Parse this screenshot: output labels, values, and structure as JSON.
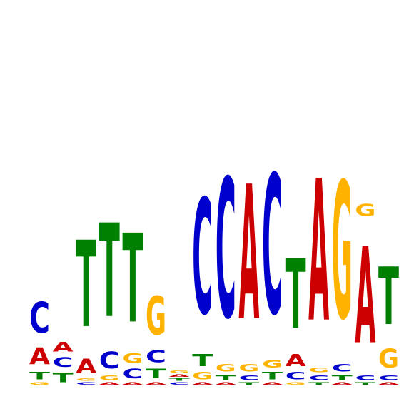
{
  "logo": {
    "type": "sequence-logo",
    "colors": {
      "A": "#cc0000",
      "C": "#0000cc",
      "G": "#ffb300",
      "T": "#008000"
    },
    "positions": [
      [
        [
          "G",
          0.01
        ],
        [
          "T",
          0.03
        ],
        [
          "A",
          0.07
        ],
        [
          "C",
          0.13
        ]
      ],
      [
        [
          "T",
          0.04
        ],
        [
          "C",
          0.04
        ],
        [
          "A",
          0.04
        ]
      ],
      [
        [
          "C",
          0.01
        ],
        [
          "G",
          0.01
        ],
        [
          "A",
          0.06
        ],
        [
          "T",
          0.36
        ]
      ],
      [
        [
          "A",
          0.01
        ],
        [
          "G",
          0.02
        ],
        [
          "C",
          0.07
        ],
        [
          "T",
          0.39
        ]
      ],
      [
        [
          "A",
          0.01
        ],
        [
          "C",
          0.04
        ],
        [
          "G",
          0.04
        ],
        [
          "T",
          0.37
        ]
      ],
      [
        [
          "A",
          0.01
        ],
        [
          "T",
          0.04
        ],
        [
          "C",
          0.05
        ],
        [
          "G",
          0.16
        ]
      ],
      [
        [
          "C",
          0.01
        ],
        [
          "T",
          0.01
        ],
        [
          "A",
          0.01
        ],
        [
          "G",
          0.01
        ]
      ],
      [
        [
          "A",
          0.01
        ],
        [
          "G",
          0.03
        ],
        [
          "T",
          0.05
        ],
        [
          "C",
          0.48
        ]
      ],
      [
        [
          "A",
          0.01
        ],
        [
          "T",
          0.02
        ],
        [
          "G",
          0.03
        ],
        [
          "C",
          0.58
        ]
      ],
      [
        [
          "T",
          0.01
        ],
        [
          "C",
          0.02
        ],
        [
          "G",
          0.03
        ],
        [
          "A",
          0.56
        ]
      ],
      [
        [
          "A",
          0.01
        ],
        [
          "T",
          0.03
        ],
        [
          "G",
          0.03
        ],
        [
          "C",
          0.58
        ]
      ],
      [
        [
          "G",
          0.01
        ],
        [
          "C",
          0.03
        ],
        [
          "A",
          0.05
        ],
        [
          "T",
          0.29
        ]
      ],
      [
        [
          "T",
          0.01
        ],
        [
          "C",
          0.02
        ],
        [
          "G",
          0.02
        ],
        [
          "A",
          0.59
        ]
      ],
      [
        [
          "A",
          0.01
        ],
        [
          "T",
          0.02
        ],
        [
          "C",
          0.03
        ],
        [
          "G",
          0.57
        ]
      ],
      [
        [
          "T",
          0.01
        ],
        [
          "C",
          0.02
        ],
        [
          "A",
          0.4
        ],
        [
          "G",
          0.05
        ]
      ],
      [
        [
          "A",
          0.01
        ],
        [
          "C",
          0.02
        ],
        [
          "G",
          0.08
        ],
        [
          "T",
          0.24
        ]
      ]
    ]
  }
}
